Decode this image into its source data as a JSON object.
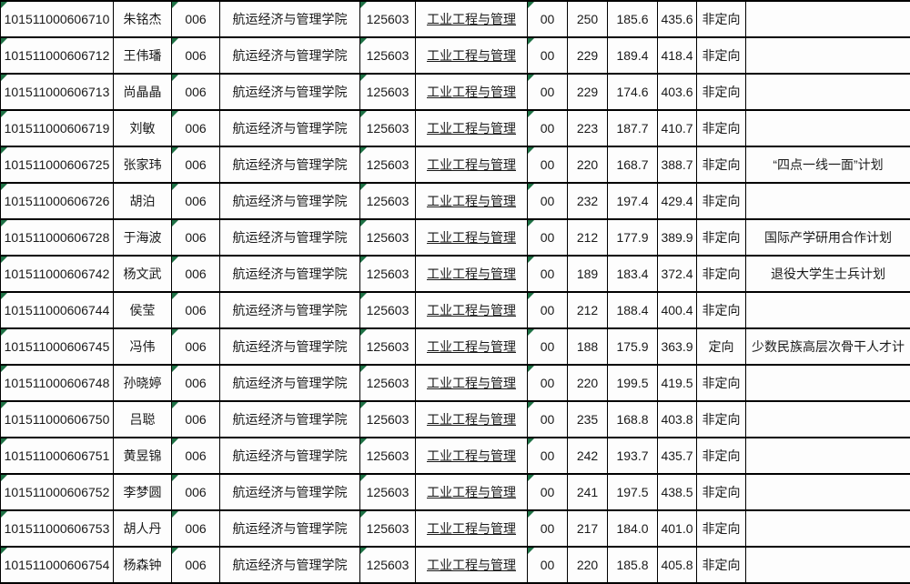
{
  "table": {
    "columns": [
      {
        "key": "exam_id",
        "name": "candidate-id",
        "indicator": true,
        "underline": false
      },
      {
        "key": "name",
        "name": "candidate-name",
        "indicator": false,
        "underline": false
      },
      {
        "key": "college_code",
        "name": "college-code",
        "indicator": true,
        "underline": false
      },
      {
        "key": "college",
        "name": "college-name",
        "indicator": false,
        "underline": false
      },
      {
        "key": "major_code",
        "name": "major-code",
        "indicator": true,
        "underline": false
      },
      {
        "key": "major",
        "name": "major-name",
        "indicator": false,
        "underline": true
      },
      {
        "key": "direction_code",
        "name": "direction-code",
        "indicator": true,
        "underline": false
      },
      {
        "key": "score_1",
        "name": "score-1",
        "indicator": false,
        "underline": false
      },
      {
        "key": "score_2",
        "name": "score-2",
        "indicator": false,
        "underline": false
      },
      {
        "key": "score_total",
        "name": "score-total",
        "indicator": false,
        "underline": false
      },
      {
        "key": "study_mode",
        "name": "enrollment-type",
        "indicator": false,
        "underline": false
      },
      {
        "key": "remark",
        "name": "remark",
        "indicator": false,
        "underline": false
      }
    ],
    "rows": [
      {
        "exam_id": "101511000606710",
        "name": "朱铭杰",
        "college_code": "006",
        "college": "航运经济与管理学院",
        "major_code": "125603",
        "major": "工业工程与管理",
        "direction_code": "00",
        "score_1": "250",
        "score_2": "185.6",
        "score_total": "435.6",
        "study_mode": "非定向",
        "remark": ""
      },
      {
        "exam_id": "101511000606712",
        "name": "王伟璠",
        "college_code": "006",
        "college": "航运经济与管理学院",
        "major_code": "125603",
        "major": "工业工程与管理",
        "direction_code": "00",
        "score_1": "229",
        "score_2": "189.4",
        "score_total": "418.4",
        "study_mode": "非定向",
        "remark": ""
      },
      {
        "exam_id": "101511000606713",
        "name": "尚晶晶",
        "college_code": "006",
        "college": "航运经济与管理学院",
        "major_code": "125603",
        "major": "工业工程与管理",
        "direction_code": "00",
        "score_1": "229",
        "score_2": "174.6",
        "score_total": "403.6",
        "study_mode": "非定向",
        "remark": ""
      },
      {
        "exam_id": "101511000606719",
        "name": "刘敏",
        "college_code": "006",
        "college": "航运经济与管理学院",
        "major_code": "125603",
        "major": "工业工程与管理",
        "direction_code": "00",
        "score_1": "223",
        "score_2": "187.7",
        "score_total": "410.7",
        "study_mode": "非定向",
        "remark": ""
      },
      {
        "exam_id": "101511000606725",
        "name": "张家玮",
        "college_code": "006",
        "college": "航运经济与管理学院",
        "major_code": "125603",
        "major": "工业工程与管理",
        "direction_code": "00",
        "score_1": "220",
        "score_2": "168.7",
        "score_total": "388.7",
        "study_mode": "非定向",
        "remark": "“四点一线一面”计划"
      },
      {
        "exam_id": "101511000606726",
        "name": "胡泊",
        "college_code": "006",
        "college": "航运经济与管理学院",
        "major_code": "125603",
        "major": "工业工程与管理",
        "direction_code": "00",
        "score_1": "232",
        "score_2": "197.4",
        "score_total": "429.4",
        "study_mode": "非定向",
        "remark": ""
      },
      {
        "exam_id": "101511000606728",
        "name": "于海波",
        "college_code": "006",
        "college": "航运经济与管理学院",
        "major_code": "125603",
        "major": "工业工程与管理",
        "direction_code": "00",
        "score_1": "212",
        "score_2": "177.9",
        "score_total": "389.9",
        "study_mode": "非定向",
        "remark": "国际产学研用合作计划"
      },
      {
        "exam_id": "101511000606742",
        "name": "杨文武",
        "college_code": "006",
        "college": "航运经济与管理学院",
        "major_code": "125603",
        "major": "工业工程与管理",
        "direction_code": "00",
        "score_1": "189",
        "score_2": "183.4",
        "score_total": "372.4",
        "study_mode": "非定向",
        "remark": "退役大学生士兵计划"
      },
      {
        "exam_id": "101511000606744",
        "name": "侯莹",
        "college_code": "006",
        "college": "航运经济与管理学院",
        "major_code": "125603",
        "major": "工业工程与管理",
        "direction_code": "00",
        "score_1": "212",
        "score_2": "188.4",
        "score_total": "400.4",
        "study_mode": "非定向",
        "remark": ""
      },
      {
        "exam_id": "101511000606745",
        "name": "冯伟",
        "college_code": "006",
        "college": "航运经济与管理学院",
        "major_code": "125603",
        "major": "工业工程与管理",
        "direction_code": "00",
        "score_1": "188",
        "score_2": "175.9",
        "score_total": "363.9",
        "study_mode": "定向",
        "remark": "少数民族高层次骨干人才计"
      },
      {
        "exam_id": "101511000606748",
        "name": "孙晓婷",
        "college_code": "006",
        "college": "航运经济与管理学院",
        "major_code": "125603",
        "major": "工业工程与管理",
        "direction_code": "00",
        "score_1": "220",
        "score_2": "199.5",
        "score_total": "419.5",
        "study_mode": "非定向",
        "remark": ""
      },
      {
        "exam_id": "101511000606750",
        "name": "吕聪",
        "college_code": "006",
        "college": "航运经济与管理学院",
        "major_code": "125603",
        "major": "工业工程与管理",
        "direction_code": "00",
        "score_1": "235",
        "score_2": "168.8",
        "score_total": "403.8",
        "study_mode": "非定向",
        "remark": ""
      },
      {
        "exam_id": "101511000606751",
        "name": "黄昱锦",
        "college_code": "006",
        "college": "航运经济与管理学院",
        "major_code": "125603",
        "major": "工业工程与管理",
        "direction_code": "00",
        "score_1": "242",
        "score_2": "193.7",
        "score_total": "435.7",
        "study_mode": "非定向",
        "remark": ""
      },
      {
        "exam_id": "101511000606752",
        "name": "李梦圆",
        "college_code": "006",
        "college": "航运经济与管理学院",
        "major_code": "125603",
        "major": "工业工程与管理",
        "direction_code": "00",
        "score_1": "241",
        "score_2": "197.5",
        "score_total": "438.5",
        "study_mode": "非定向",
        "remark": ""
      },
      {
        "exam_id": "101511000606753",
        "name": "胡人丹",
        "college_code": "006",
        "college": "航运经济与管理学院",
        "major_code": "125603",
        "major": "工业工程与管理",
        "direction_code": "00",
        "score_1": "217",
        "score_2": "184.0",
        "score_total": "401.0",
        "study_mode": "非定向",
        "remark": ""
      },
      {
        "exam_id": "101511000606754",
        "name": "杨森钟",
        "college_code": "006",
        "college": "航运经济与管理学院",
        "major_code": "125603",
        "major": "工业工程与管理",
        "direction_code": "00",
        "score_1": "220",
        "score_2": "185.8",
        "score_total": "405.8",
        "study_mode": "非定向",
        "remark": ""
      }
    ]
  },
  "icons": {
    "error_indicator": "green-triangle-top-left"
  },
  "colors": {
    "border": "#000000",
    "indicator_green": "#1e7145",
    "cell_background": "#fdfdfd",
    "text": "#1a1a1a"
  }
}
